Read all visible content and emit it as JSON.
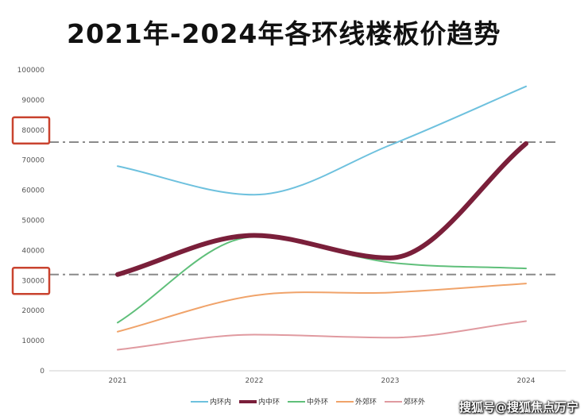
{
  "chart_data": {
    "type": "line",
    "title": "2021年-2024年各环线楼板价趋势",
    "categories": [
      "2021",
      "2022",
      "2023",
      "2024"
    ],
    "ylim": [
      0,
      100000
    ],
    "yticks": [
      "0",
      "10000",
      "20000",
      "30000",
      "40000",
      "50000",
      "60000",
      "70000",
      "80000",
      "90000",
      "100000"
    ],
    "series": [
      {
        "name": "内环内",
        "color": "#6ec1de",
        "values": [
          68000,
          58500,
          75000,
          94500
        ]
      },
      {
        "name": "内中环",
        "color": "#7a1f3a",
        "values": [
          32000,
          45000,
          37500,
          75500
        ],
        "emphasis": true
      },
      {
        "name": "中外环",
        "color": "#5fbf7a",
        "values": [
          16000,
          44500,
          36000,
          34000
        ]
      },
      {
        "name": "外郊环",
        "color": "#f0a36a",
        "values": [
          13000,
          25000,
          26000,
          29000
        ]
      },
      {
        "name": "郊环外",
        "color": "#e09aa0",
        "values": [
          7000,
          12000,
          11000,
          16500
        ]
      }
    ],
    "legend_position": "bottom",
    "reference_lines": [
      {
        "value": 76000,
        "label": "80000"
      },
      {
        "value": 32000,
        "label": "30000"
      }
    ],
    "grid": false
  },
  "watermark": "搜狐号@搜狐焦点万宁"
}
